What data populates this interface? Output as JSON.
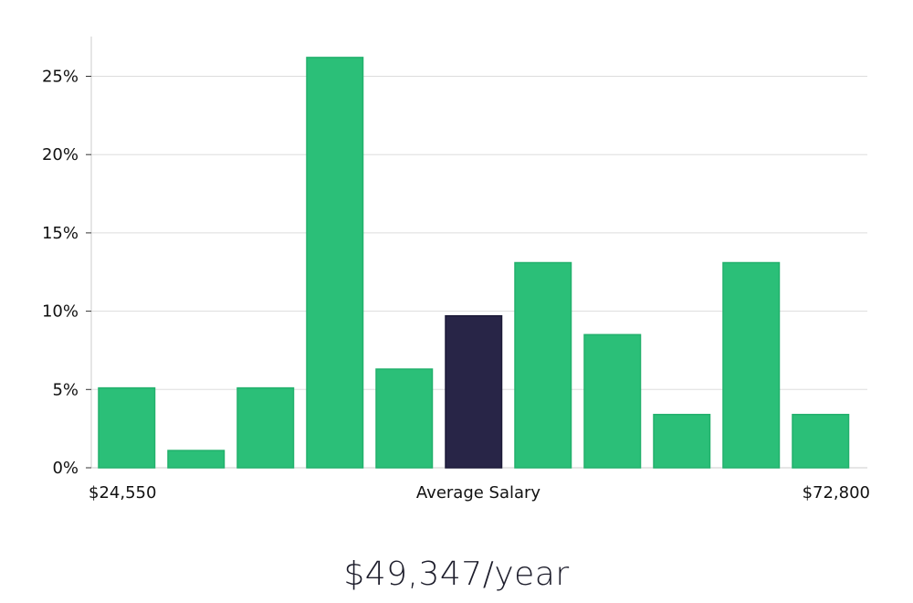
{
  "chart_data": {
    "type": "bar",
    "values": [
      5.1,
      1.1,
      5.1,
      26.2,
      6.3,
      9.7,
      13.1,
      8.5,
      3.4,
      13.1,
      3.4
    ],
    "highlight_index": 5,
    "y_ticks": [
      "0%",
      "5%",
      "10%",
      "15%",
      "20%",
      "25%"
    ],
    "ylim": [
      0,
      27.5
    ],
    "x_min_label": "$24,550",
    "x_mid_label": "Average Salary",
    "x_max_label": "$72,800",
    "grid": true
  },
  "colors": {
    "bar": "#2bbf78",
    "bar_highlight": "#282547",
    "grid": "#dddddd",
    "axis": "#cccccc"
  },
  "summary": {
    "salary": "$49,347/year"
  }
}
